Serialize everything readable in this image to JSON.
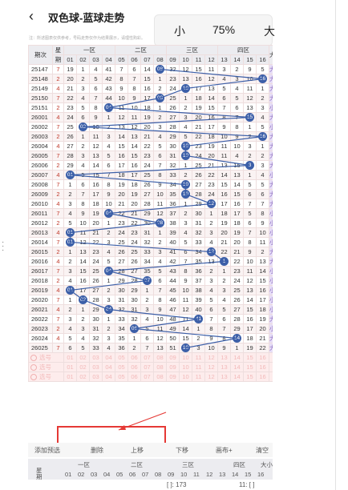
{
  "header": {
    "back_icon": "‹",
    "title": "双色球-蓝球走势",
    "caret": "⌵"
  },
  "toolbar": {
    "small": "小",
    "zoom": "75%",
    "large": "大"
  },
  "hint": "注：所述图表仅供参考，号码走势仅作为结果展示，请理性购彩。",
  "columns": {
    "issue": "期次",
    "span_top": "星",
    "span_bottom": "期",
    "zones": [
      "一区",
      "二区",
      "三区",
      "四区"
    ],
    "side": "大小",
    "numbers": [
      "01",
      "02",
      "03",
      "04",
      "05",
      "06",
      "07",
      "08",
      "09",
      "10",
      "11",
      "12",
      "13",
      "14",
      "15",
      "16"
    ]
  },
  "rows": [
    {
      "issue": "25147",
      "span": "7",
      "cells": [
        "19",
        "1",
        "4",
        "41",
        "7",
        "6",
        "14",
        "08",
        "32",
        "12",
        "15",
        "11",
        "3",
        "2",
        "9",
        "5"
      ],
      "hit": 8,
      "side": "大"
    },
    {
      "issue": "25148",
      "span": "2",
      "cells": [
        "20",
        "2",
        "5",
        "42",
        "8",
        "7",
        "15",
        "1",
        "23",
        "13",
        "16",
        "12",
        "4",
        "3",
        "10",
        "16"
      ],
      "hit": 16,
      "side": "大"
    },
    {
      "issue": "25149",
      "span": "4",
      "cells": [
        "21",
        "3",
        "6",
        "43",
        "9",
        "8",
        "16",
        "2",
        "24",
        "10",
        "17",
        "13",
        "5",
        "4",
        "11",
        "1"
      ],
      "hit": 10,
      "side": "大"
    },
    {
      "issue": "25150",
      "span": "7",
      "cells": [
        "22",
        "4",
        "7",
        "44",
        "10",
        "9",
        "17",
        "08",
        "25",
        "1",
        "18",
        "14",
        "6",
        "5",
        "12",
        "2"
      ],
      "hit": 8,
      "side": "大"
    },
    {
      "issue": "25151",
      "span": "2",
      "cells": [
        "23",
        "5",
        "8",
        "04",
        "11",
        "10",
        "18",
        "1",
        "26",
        "2",
        "19",
        "15",
        "7",
        "6",
        "13",
        "3"
      ],
      "hit": 4,
      "side": "小"
    },
    {
      "issue": "26001",
      "span": "4",
      "cells": [
        "24",
        "6",
        "9",
        "1",
        "12",
        "11",
        "19",
        "2",
        "27",
        "3",
        "20",
        "16",
        "8",
        "7",
        "15",
        "4"
      ],
      "hit": 15,
      "side": "大"
    },
    {
      "issue": "26002",
      "span": "7",
      "cells": [
        "25",
        "02",
        "10",
        "2",
        "13",
        "12",
        "20",
        "3",
        "28",
        "4",
        "21",
        "17",
        "9",
        "8",
        "1",
        "5"
      ],
      "hit": 2,
      "side": "小"
    },
    {
      "issue": "26003",
      "span": "2",
      "cells": [
        "26",
        "1",
        "11",
        "3",
        "14",
        "13",
        "21",
        "4",
        "29",
        "5",
        "22",
        "18",
        "10",
        "9",
        "2",
        "16"
      ],
      "hit": 16,
      "side": "大"
    },
    {
      "issue": "26004",
      "span": "4",
      "cells": [
        "27",
        "2",
        "12",
        "4",
        "15",
        "14",
        "22",
        "5",
        "30",
        "10",
        "23",
        "19",
        "11",
        "10",
        "3",
        "1"
      ],
      "hit": 10,
      "side": "大"
    },
    {
      "issue": "26005",
      "span": "7",
      "cells": [
        "28",
        "3",
        "13",
        "5",
        "16",
        "15",
        "23",
        "6",
        "31",
        "10",
        "24",
        "20",
        "11",
        "4",
        "2",
        "2"
      ],
      "hit": 10,
      "side": "大"
    },
    {
      "issue": "26006",
      "span": "2",
      "cells": [
        "29",
        "4",
        "14",
        "6",
        "17",
        "16",
        "24",
        "7",
        "32",
        "1",
        "25",
        "21",
        "13",
        "15",
        "3",
        "3"
      ],
      "hit": 15,
      "side": "大"
    },
    {
      "issue": "26007",
      "span": "4",
      "cells": [
        "01",
        "5",
        "15",
        "7",
        "18",
        "17",
        "25",
        "8",
        "33",
        "2",
        "26",
        "22",
        "14",
        "13",
        "1",
        "4"
      ],
      "hit": 1,
      "side": "小"
    },
    {
      "issue": "26008",
      "span": "7",
      "cells": [
        "1",
        "6",
        "16",
        "8",
        "19",
        "18",
        "26",
        "9",
        "34",
        "10",
        "27",
        "23",
        "15",
        "14",
        "5",
        "5"
      ],
      "hit": 10,
      "side": "大"
    },
    {
      "issue": "26009",
      "span": "2",
      "cells": [
        "2",
        "7",
        "17",
        "9",
        "20",
        "19",
        "27",
        "10",
        "35",
        "10",
        "28",
        "24",
        "16",
        "15",
        "6",
        "6"
      ],
      "hit": 10,
      "side": "大"
    },
    {
      "issue": "26010",
      "span": "4",
      "cells": [
        "3",
        "8",
        "18",
        "10",
        "21",
        "20",
        "28",
        "11",
        "36",
        "1",
        "29",
        "12",
        "17",
        "16",
        "7",
        "7"
      ],
      "hit": 12,
      "side": "大"
    },
    {
      "issue": "26011",
      "span": "7",
      "cells": [
        "4",
        "9",
        "19",
        "04",
        "22",
        "21",
        "29",
        "12",
        "37",
        "2",
        "30",
        "1",
        "18",
        "17",
        "5",
        "8"
      ],
      "hit": 4,
      "side": "小"
    },
    {
      "issue": "26012",
      "span": "2",
      "cells": [
        "5",
        "10",
        "20",
        "1",
        "23",
        "22",
        "30",
        "08",
        "38",
        "3",
        "31",
        "2",
        "19",
        "18",
        "6",
        "9"
      ],
      "hit": 8,
      "side": "小"
    },
    {
      "issue": "26013",
      "span": "4",
      "cells": [
        "01",
        "11",
        "21",
        "2",
        "24",
        "23",
        "31",
        "1",
        "39",
        "4",
        "32",
        "3",
        "20",
        "19",
        "7",
        "10"
      ],
      "hit": 1,
      "side": "小"
    },
    {
      "issue": "26014",
      "span": "7",
      "cells": [
        "01",
        "12",
        "22",
        "3",
        "25",
        "24",
        "32",
        "2",
        "40",
        "5",
        "33",
        "4",
        "21",
        "20",
        "8",
        "11"
      ],
      "hit": 1,
      "side": "小"
    },
    {
      "issue": "26015",
      "span": "2",
      "cells": [
        "1",
        "13",
        "23",
        "4",
        "26",
        "25",
        "33",
        "3",
        "41",
        "6",
        "34",
        "12",
        "22",
        "21",
        "9",
        "2"
      ],
      "hit": 12,
      "side": "大"
    },
    {
      "issue": "26016",
      "span": "4",
      "cells": [
        "2",
        "14",
        "24",
        "5",
        "27",
        "26",
        "34",
        "4",
        "42",
        "7",
        "35",
        "13",
        "1",
        "22",
        "10",
        "13"
      ],
      "hit": 13,
      "side": "大"
    },
    {
      "issue": "26017",
      "span": "7",
      "cells": [
        "3",
        "15",
        "25",
        "04",
        "28",
        "27",
        "35",
        "5",
        "43",
        "8",
        "36",
        "2",
        "1",
        "23",
        "11",
        "14"
      ],
      "hit": 4,
      "side": "小"
    },
    {
      "issue": "26018",
      "span": "2",
      "cells": [
        "4",
        "16",
        "26",
        "1",
        "29",
        "28",
        "07",
        "6",
        "44",
        "9",
        "37",
        "3",
        "2",
        "24",
        "12",
        "15"
      ],
      "hit": 7,
      "side": "小"
    },
    {
      "issue": "26019",
      "span": "4",
      "cells": [
        "01",
        "17",
        "27",
        "2",
        "30",
        "29",
        "1",
        "7",
        "45",
        "10",
        "38",
        "4",
        "3",
        "25",
        "13",
        "16"
      ],
      "hit": 1,
      "side": "小"
    },
    {
      "issue": "26020",
      "span": "7",
      "cells": [
        "1",
        "02",
        "28",
        "3",
        "31",
        "30",
        "2",
        "8",
        "46",
        "11",
        "39",
        "5",
        "4",
        "26",
        "14",
        "17"
      ],
      "hit": 2,
      "side": "小"
    },
    {
      "issue": "26021",
      "span": "4",
      "cells": [
        "2",
        "1",
        "29",
        "04",
        "32",
        "31",
        "3",
        "9",
        "47",
        "12",
        "40",
        "6",
        "5",
        "27",
        "15",
        "18"
      ],
      "hit": 4,
      "side": "小"
    },
    {
      "issue": "26022",
      "span": "7",
      "cells": [
        "3",
        "2",
        "30",
        "1",
        "33",
        "32",
        "4",
        "10",
        "48",
        "11",
        "41",
        "7",
        "6",
        "28",
        "16",
        "19"
      ],
      "hit": 11,
      "side": "大"
    },
    {
      "issue": "26023",
      "span": "2",
      "cells": [
        "4",
        "3",
        "31",
        "2",
        "34",
        "06",
        "5",
        "11",
        "49",
        "14",
        "1",
        "8",
        "7",
        "29",
        "17",
        "20"
      ],
      "hit": 6,
      "side": "小"
    },
    {
      "issue": "26024",
      "span": "4",
      "cells": [
        "5",
        "4",
        "32",
        "3",
        "35",
        "1",
        "6",
        "12",
        "50",
        "15",
        "2",
        "9",
        "8",
        "14",
        "18",
        "21"
      ],
      "hit": 14,
      "side": "大"
    },
    {
      "issue": "26025",
      "span": "7",
      "cells": [
        "6",
        "5",
        "33",
        "4",
        "36",
        "2",
        "7",
        "13",
        "51",
        "10",
        "3",
        "10",
        "9",
        "1",
        "19",
        "22"
      ],
      "hit": 10,
      "side": "大"
    }
  ],
  "select_rows": [
    {
      "label": "选号",
      "cells": [
        "01",
        "02",
        "03",
        "04",
        "05",
        "06",
        "07",
        "08",
        "09",
        "10",
        "11",
        "12",
        "13",
        "14",
        "15",
        "16"
      ]
    },
    {
      "label": "选号",
      "cells": [
        "01",
        "02",
        "03",
        "04",
        "05",
        "06",
        "07",
        "08",
        "09",
        "10",
        "11",
        "12",
        "13",
        "14",
        "15",
        "16"
      ]
    },
    {
      "label": "选号",
      "cells": [
        "01",
        "02",
        "03",
        "04",
        "05",
        "06",
        "07",
        "08",
        "09",
        "10",
        "11",
        "12",
        "13",
        "14",
        "15",
        "16"
      ]
    }
  ],
  "buttons": [
    "添加预选",
    "删除",
    "上移",
    "下移",
    "画布+",
    "清空"
  ],
  "footer": {
    "numbers": [
      "01",
      "02",
      "03",
      "04",
      "05",
      "06",
      "07",
      "08",
      "09",
      "10",
      "11",
      "12",
      "13",
      "14",
      "15",
      "16"
    ],
    "zones": [
      "一区",
      "二区",
      "三区",
      "四区"
    ],
    "side": "大小",
    "span_top": "星",
    "span_bottom": "期"
  },
  "footnotes": [
    "[ ]: 173",
    "11: [ ]"
  ]
}
